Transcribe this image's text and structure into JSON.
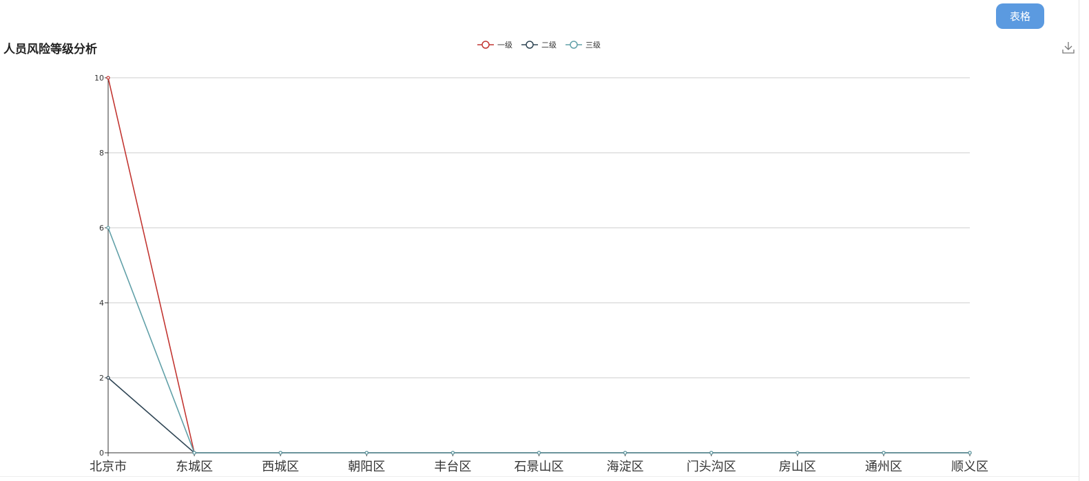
{
  "toolbar": {
    "table_label": "表格"
  },
  "download_icon": "download-icon",
  "chart_data": {
    "type": "line",
    "title": "人员风险等级分析",
    "categories": [
      "北京市",
      "东城区",
      "西城区",
      "朝阳区",
      "丰台区",
      "石景山区",
      "海淀区",
      "门头沟区",
      "房山区",
      "通州区",
      "顺义区"
    ],
    "series": [
      {
        "name": "一级",
        "color": "#c23531",
        "values": [
          10,
          0,
          0,
          0,
          0,
          0,
          0,
          0,
          0,
          0,
          0
        ]
      },
      {
        "name": "二级",
        "color": "#2f4554",
        "values": [
          2,
          0,
          0,
          0,
          0,
          0,
          0,
          0,
          0,
          0,
          0
        ]
      },
      {
        "name": "三级",
        "color": "#61a0a8",
        "values": [
          6,
          0,
          0,
          0,
          0,
          0,
          0,
          0,
          0,
          0,
          0
        ]
      }
    ],
    "ylim": [
      0,
      10
    ],
    "yticks": [
      0,
      2,
      4,
      6,
      8,
      10
    ],
    "grid": true,
    "legend_position": "top-center"
  }
}
